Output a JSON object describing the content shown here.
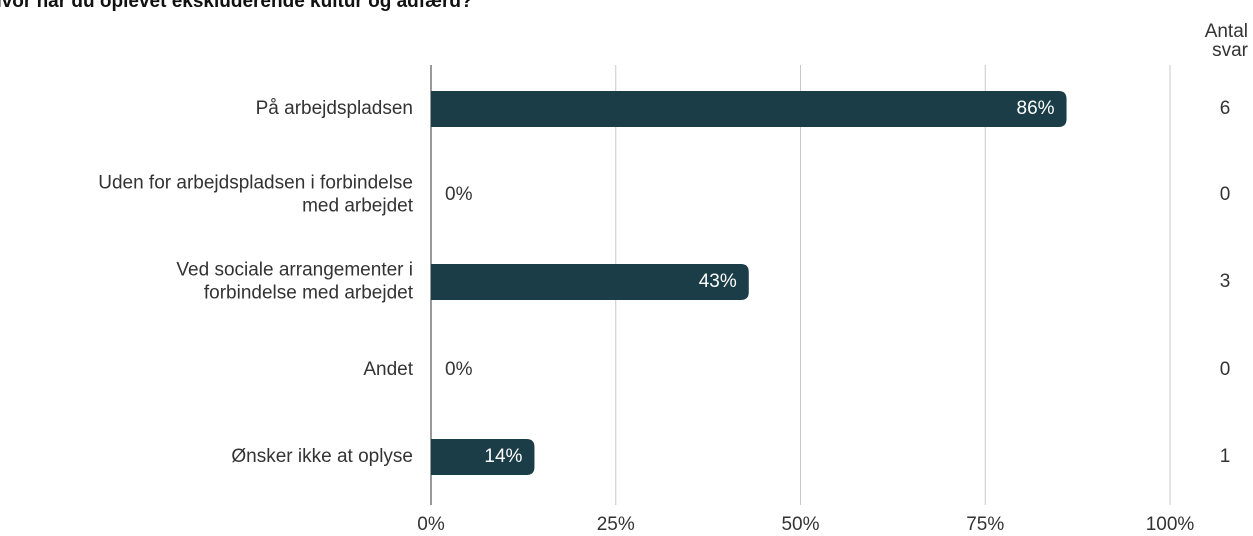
{
  "chart_data": {
    "type": "bar",
    "orientation": "horizontal",
    "title": "Hvor har du oplevet ekskluderende kultur og adfærd?",
    "categories": [
      [
        "På arbejdspladsen"
      ],
      [
        "Uden for arbejdspladsen i forbindelse",
        "med arbejdet"
      ],
      [
        "Ved sociale arrangementer i",
        "forbindelse med arbejdet"
      ],
      [
        "Andet"
      ],
      [
        "Ønsker ikke at oplyse"
      ]
    ],
    "values": [
      86,
      0,
      43,
      0,
      14
    ],
    "value_labels": [
      "86%",
      "0%",
      "43%",
      "0%",
      "14%"
    ],
    "color": "#1b3d47",
    "count_label": [
      "Antal",
      "svar"
    ],
    "counts": [
      6,
      0,
      3,
      0,
      1
    ],
    "xlim": [
      0,
      100
    ],
    "xticks": [
      {
        "value": 0,
        "label": "0%"
      },
      {
        "value": 25,
        "label": "25%"
      },
      {
        "value": 50,
        "label": "50%"
      },
      {
        "value": 75,
        "label": "75%"
      },
      {
        "value": 100,
        "label": "100%"
      }
    ],
    "grid": true
  }
}
